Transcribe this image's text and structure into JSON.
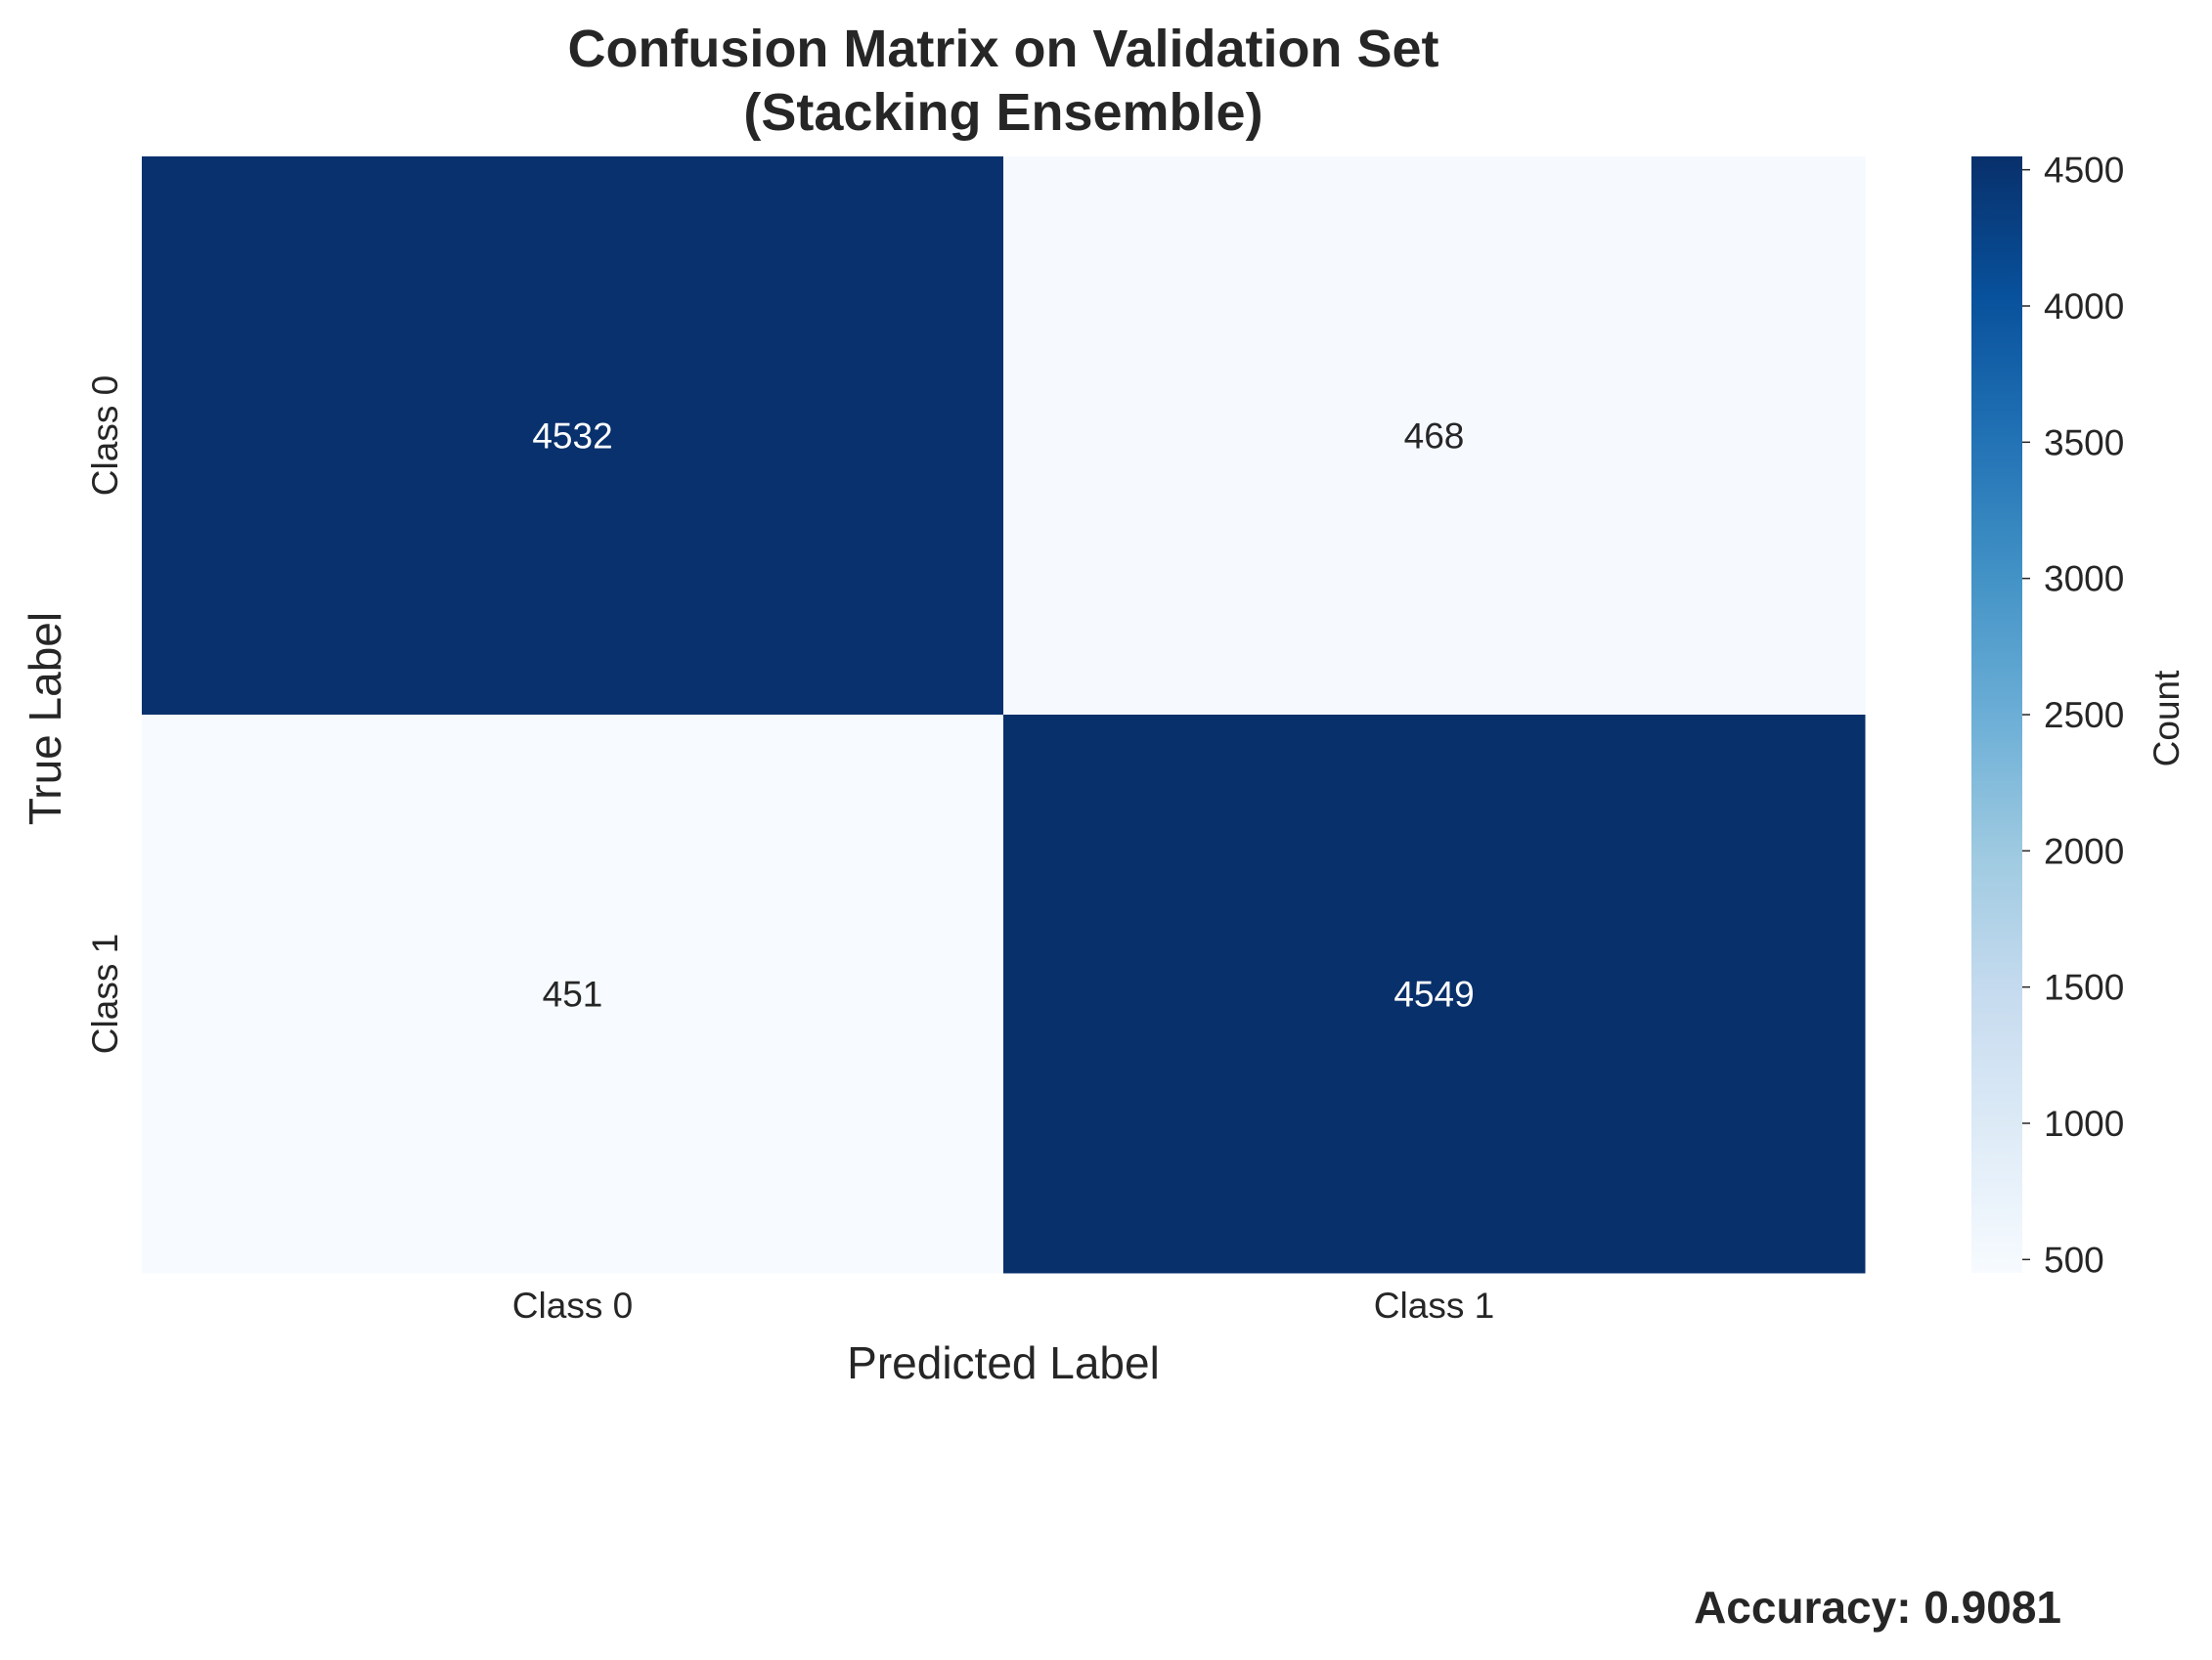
{
  "chart_data": {
    "type": "heatmap",
    "title_line1": "Confusion Matrix on Validation Set",
    "title_line2": "(Stacking Ensemble)",
    "xlabel": "Predicted Label",
    "ylabel": "True Label",
    "x_categories": [
      "Class 0",
      "Class 1"
    ],
    "y_categories": [
      "Class 0",
      "Class 1"
    ],
    "values": [
      [
        4532,
        468
      ],
      [
        451,
        4549
      ]
    ],
    "colorbar": {
      "label": "Count",
      "range": [
        451,
        4549
      ],
      "ticks": [
        "500",
        "1000",
        "1500",
        "2000",
        "2500",
        "3000",
        "3500",
        "4000",
        "4500"
      ],
      "colormap": "Blues",
      "colors": [
        "#f7fbff",
        "#deebf7",
        "#c6dbef",
        "#9ecae1",
        "#6baed6",
        "#4292c6",
        "#2171b5",
        "#08519c",
        "#08306b"
      ]
    },
    "grid": false
  },
  "annotation": {
    "accuracy_text": "Accuracy: 0.9081"
  }
}
